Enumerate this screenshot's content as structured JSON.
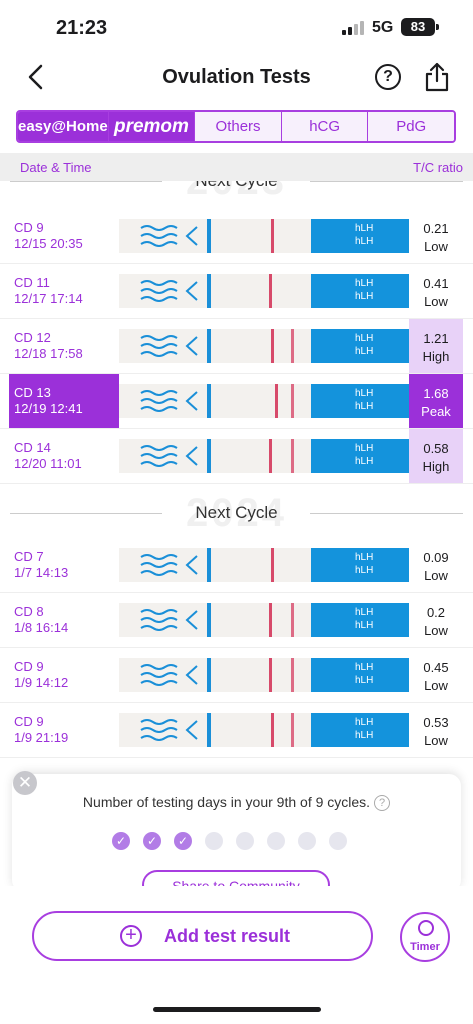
{
  "status_bar": {
    "time": "21:23",
    "network": "5G",
    "battery": "83"
  },
  "nav": {
    "title": "Ovulation Tests",
    "help_icon": "?"
  },
  "brand_tabs": [
    {
      "label": "easy@Home",
      "selected": true
    },
    {
      "label": "premom",
      "selected": false
    },
    {
      "label": "Others",
      "selected": false
    },
    {
      "label": "hCG",
      "selected": false
    },
    {
      "label": "PdG",
      "selected": false
    }
  ],
  "table_header": {
    "left": "Date & Time",
    "right": "T/C ratio"
  },
  "separators": [
    {
      "label": "Next Cycle",
      "year": "2023"
    },
    {
      "label": "Next Cycle",
      "year": "2024"
    }
  ],
  "strip_label": "hLH",
  "rows": [
    {
      "cd": "CD 9",
      "datetime": "12/15 20:35",
      "value": "0.21",
      "level": "Low"
    },
    {
      "cd": "CD 11",
      "datetime": "12/17 17:14",
      "value": "0.41",
      "level": "Low"
    },
    {
      "cd": "CD 12",
      "datetime": "12/18 17:58",
      "value": "1.21",
      "level": "High"
    },
    {
      "cd": "CD 13",
      "datetime": "12/19 12:41",
      "value": "1.68",
      "level": "Peak"
    },
    {
      "cd": "CD 14",
      "datetime": "12/20 11:01",
      "value": "0.58",
      "level": "High"
    },
    {
      "cd": "CD 7",
      "datetime": "1/7 14:13",
      "value": "0.09",
      "level": "Low"
    },
    {
      "cd": "CD 8",
      "datetime": "1/8 16:14",
      "value": "0.2",
      "level": "Low"
    },
    {
      "cd": "CD 9",
      "datetime": "1/9 14:12",
      "value": "0.45",
      "level": "Low"
    },
    {
      "cd": "CD 9",
      "datetime": "1/9 21:19",
      "value": "0.53",
      "level": "Low"
    }
  ],
  "cycle_card": {
    "text": "Number of testing days in your 9th of 9 cycles.",
    "info_icon": "?",
    "days_total": 8,
    "days_done": 3,
    "check_glyph": "✓",
    "community_button": "Share to Community",
    "close_glyph": "✕"
  },
  "bottom": {
    "add_label": "Add test result",
    "add_icon": "+",
    "timer_label": "Timer"
  },
  "colors": {
    "accent": "#9b30d9",
    "peak_bg": "#9b30d9",
    "high_bg": "#e8d2f8"
  }
}
